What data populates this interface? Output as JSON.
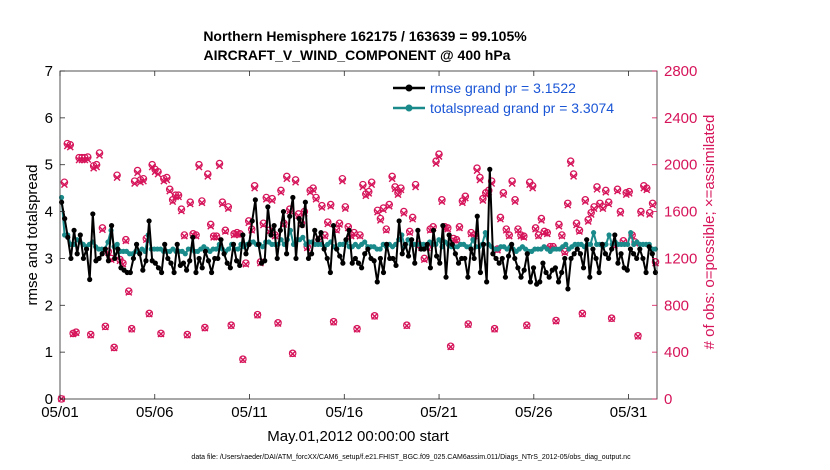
{
  "chart_data": {
    "type": "line",
    "title_line1": "Northern Hemisphere 162175 / 163639 = 99.105%",
    "title_line2": "AIRCRAFT_V_WIND_COMPONENT @ 400 hPa",
    "xlabel": "May.01,2012 00:00:00 start",
    "ylabel": "rmse and totalspread",
    "y2label": "# of obs: o=possible; ×=assimilated",
    "footnote": "data file: /Users/raeder/DAI/ATM_forcXX/CAM6_setup/f.e21.FHIST_BGC.f09_025.CAM6assim.011/Diags_NTrS_2012-05/obs_diag_output.nc",
    "xlim": [
      1,
      32.5
    ],
    "ylim": [
      0,
      7
    ],
    "y2lim": [
      0,
      2800
    ],
    "xtick_values": [
      1,
      6,
      11,
      16,
      21,
      26,
      31
    ],
    "xtick_labels": [
      "05/01",
      "05/06",
      "05/11",
      "05/16",
      "05/21",
      "05/26",
      "05/31"
    ],
    "ytick_labels": [
      "0",
      "1",
      "2",
      "3",
      "4",
      "5",
      "6",
      "7"
    ],
    "y2tick_labels": [
      "0",
      "400",
      "800",
      "1200",
      "1600",
      "2000",
      "2400",
      "2800"
    ],
    "colors": {
      "rmse": "#000000",
      "spread": "#1a8a8a",
      "obs": "#d6145a",
      "legend_text": "#1a55d6"
    },
    "series": [
      {
        "name": "rmse",
        "legend": "rmse grand pr = 3.1522",
        "values": [
          4.2,
          3.85,
          3.45,
          3.0,
          3.6,
          3.1,
          3.5,
          3.0,
          3.2,
          2.55,
          3.95,
          2.95,
          3.0,
          3.1,
          3.2,
          2.95,
          3.7,
          3.0,
          3.2,
          2.8,
          2.75,
          2.7,
          2.7,
          3.0,
          3.3,
          3.1,
          2.75,
          2.95,
          3.8,
          2.95,
          2.9,
          2.8,
          2.7,
          3.3,
          3.0,
          2.9,
          2.7,
          3.3,
          2.85,
          2.9,
          2.75,
          2.95,
          3.45,
          2.7,
          3.0,
          2.8,
          3.15,
          2.95,
          2.7,
          3.0,
          3.0,
          3.4,
          3.1,
          2.9,
          2.8,
          3.3,
          2.95,
          2.85,
          3.5,
          3.1,
          3.3,
          3.8,
          4.25,
          3.3,
          2.9,
          2.95,
          4.1,
          3.5,
          3.7,
          3.0,
          3.6,
          4.0,
          3.1,
          3.9,
          4.3,
          3.0,
          3.85,
          3.7,
          4.2,
          3.0,
          3.1,
          3.6,
          3.4,
          3.55,
          3.2,
          3.0,
          2.7,
          3.7,
          3.2,
          3.05,
          2.9,
          3.4,
          3.6,
          2.9,
          3.0,
          2.9,
          2.8,
          3.1,
          3.2,
          3.0,
          2.95,
          2.5,
          3.0,
          2.7,
          3.3,
          3.0,
          3.0,
          2.85,
          3.8,
          3.1,
          3.3,
          3.05,
          3.4,
          2.9,
          3.6,
          3.2,
          3.2,
          3.3,
          2.8,
          3.6,
          3.05,
          2.9,
          3.7,
          2.6,
          3.5,
          3.3,
          3.1,
          2.9,
          3.0,
          3.0,
          2.6,
          3.2,
          3.0,
          3.9,
          2.7,
          3.3,
          2.5,
          4.9,
          3.1,
          3.0,
          2.9,
          3.0,
          2.6,
          3.05,
          3.3,
          3.0,
          2.8,
          2.6,
          2.75,
          3.1,
          2.5,
          2.8,
          2.45,
          2.5,
          2.9,
          2.7,
          2.6,
          2.75,
          2.8,
          2.5,
          2.7,
          3.0,
          2.35,
          3.0,
          3.1,
          3.2,
          3.1,
          2.8,
          3.4,
          2.6,
          3.2,
          3.0,
          2.7,
          3.3,
          3.1,
          3.0,
          3.2,
          3.5,
          2.9,
          3.1,
          2.8,
          2.75,
          3.2,
          3.1,
          3.0,
          3.2,
          3.0,
          2.7,
          3.25,
          3.1,
          2.7
        ]
      },
      {
        "name": "totalspread",
        "legend": "totalspread grand pr = 3.3074",
        "values": [
          4.3,
          3.5,
          3.5,
          3.3,
          3.3,
          3.4,
          3.35,
          3.3,
          3.25,
          3.3,
          3.35,
          3.25,
          3.2,
          3.2,
          3.2,
          3.35,
          3.6,
          3.25,
          3.3,
          3.15,
          3.15,
          3.15,
          3.1,
          3.1,
          3.15,
          3.15,
          3.2,
          3.15,
          3.5,
          3.2,
          3.2,
          3.2,
          3.2,
          3.15,
          3.15,
          3.15,
          3.2,
          3.15,
          3.15,
          3.15,
          3.1,
          3.2,
          3.2,
          3.15,
          3.15,
          3.2,
          3.25,
          3.2,
          3.15,
          3.2,
          3.2,
          3.3,
          3.2,
          3.15,
          3.2,
          3.3,
          3.2,
          3.2,
          3.3,
          3.25,
          3.3,
          3.35,
          3.35,
          3.3,
          3.3,
          3.25,
          3.35,
          3.35,
          3.3,
          3.3,
          3.3,
          3.4,
          3.3,
          3.4,
          3.6,
          3.3,
          3.4,
          3.4,
          3.45,
          3.3,
          3.35,
          3.35,
          3.3,
          3.3,
          3.3,
          3.25,
          3.3,
          3.35,
          3.25,
          3.2,
          3.3,
          3.3,
          3.35,
          3.25,
          3.25,
          3.3,
          3.25,
          3.3,
          3.35,
          3.25,
          3.25,
          3.25,
          3.2,
          3.2,
          3.3,
          3.25,
          3.3,
          3.25,
          3.3,
          3.4,
          3.5,
          3.25,
          3.4,
          3.3,
          3.3,
          3.3,
          3.3,
          3.3,
          3.25,
          3.35,
          3.3,
          3.3,
          3.4,
          3.25,
          3.35,
          3.3,
          3.25,
          3.25,
          3.25,
          3.3,
          3.3,
          3.25,
          3.25,
          3.4,
          3.25,
          3.25,
          3.3,
          3.55,
          3.3,
          3.25,
          3.2,
          3.2,
          3.25,
          3.25,
          3.2,
          3.25,
          3.2,
          3.15,
          3.2,
          3.25,
          3.2,
          3.15,
          3.15,
          3.2,
          3.2,
          3.2,
          3.25,
          3.2,
          3.15,
          3.2,
          3.2,
          3.2,
          3.25,
          3.3,
          3.2,
          3.25,
          3.3,
          3.3,
          3.3,
          3.25,
          3.3,
          3.3,
          3.55,
          3.3,
          3.3,
          3.25,
          3.3,
          3.5,
          3.3,
          3.35,
          3.3,
          3.3,
          3.3,
          3.3,
          3.55,
          3.3,
          3.35,
          3.3,
          3.3,
          3.3,
          3.3,
          3.2,
          3.2
        ]
      }
    ],
    "obs_possible": [
      1,
      1850,
      2180,
      2170,
      560,
      570,
      2060,
      2060,
      2060,
      2065,
      550,
      1990,
      2000,
      2100,
      1460,
      620,
      1260,
      1200,
      440,
      1910,
      1190,
      1160,
      1360,
      920,
      600,
      1860,
      1950,
      1870,
      1880,
      1370,
      730,
      2000,
      1960,
      1940,
      560,
      1880,
      1890,
      1790,
      1700,
      1740,
      1740,
      1620,
      1400,
      550,
      1680,
      1410,
      1400,
      2000,
      1690,
      610,
      1920,
      1490,
      1390,
      1390,
      2010,
      1680,
      1440,
      1640,
      630,
      1410,
      1420,
      1410,
      340,
      1160,
      1520,
      1450,
      1820,
      720,
      1170,
      1500,
      1720,
      1440,
      1710,
      1400,
      650,
      1780,
      1500,
      1900,
      1620,
      390,
      1870,
      1580,
      1500,
      1600,
      1300,
      1780,
      1800,
      1720,
      1360,
      1650,
      1400,
      1510,
      1660,
      660,
      1450,
      1500,
      1880,
      1640,
      1470,
      1400,
      1420,
      600,
      1400,
      1830,
      1750,
      1770,
      1850,
      710,
      1610,
      1540,
      1630,
      1450,
      1660,
      1900,
      1810,
      1760,
      1800,
      1600,
      630,
      1430,
      1550,
      1830,
      1320,
      1300,
      1200,
      1300,
      1450,
      1470,
      2030,
      2090,
      1700,
      1470,
      1460,
      450,
      1370,
      1360,
      1470,
      1690,
      1730,
      640,
      1420,
      1400,
      1970,
      1890,
      1710,
      1760,
      1780,
      1860,
      600,
      1280,
      1550,
      1760,
      1450,
      1400,
      1860,
      1700,
      1450,
      1400,
      1390,
      630,
      1850,
      1820,
      1460,
      1400,
      1540,
      1430,
      1420,
      1300,
      1300,
      670,
      1490,
      1400,
      1260,
      1670,
      2030,
      1920,
      1500,
      1440,
      730,
      1700,
      1530,
      1590,
      1640,
      1810,
      1670,
      1640,
      1780,
      1680,
      690,
      1320,
      1790,
      1600,
      1350,
      1760,
      1770,
      1400,
      1340,
      540,
      1600,
      1820,
      1800,
      1590,
      1670,
      1170
    ],
    "obs_assimilated": [
      1,
      1830,
      2160,
      2150,
      555,
      565,
      2040,
      2040,
      2040,
      2045,
      545,
      1970,
      1980,
      2080,
      1445,
      615,
      1250,
      1190,
      435,
      1890,
      1180,
      1150,
      1350,
      910,
      595,
      1840,
      1930,
      1850,
      1860,
      1360,
      725,
      1980,
      1940,
      1920,
      555,
      1860,
      1870,
      1775,
      1685,
      1725,
      1725,
      1605,
      1390,
      545,
      1665,
      1400,
      1390,
      1980,
      1675,
      605,
      1900,
      1475,
      1380,
      1380,
      1990,
      1665,
      1430,
      1625,
      625,
      1400,
      1410,
      1400,
      335,
      1150,
      1505,
      1440,
      1800,
      715,
      1160,
      1485,
      1705,
      1430,
      1695,
      1390,
      645,
      1765,
      1490,
      1880,
      1605,
      385,
      1850,
      1565,
      1490,
      1585,
      1290,
      1765,
      1785,
      1705,
      1350,
      1635,
      1390,
      1495,
      1645,
      655,
      1440,
      1490,
      1860,
      1625,
      1460,
      1390,
      1410,
      595,
      1390,
      1810,
      1735,
      1755,
      1830,
      705,
      1595,
      1525,
      1615,
      1440,
      1645,
      1880,
      1795,
      1745,
      1785,
      1585,
      625,
      1420,
      1535,
      1810,
      1310,
      1290,
      1190,
      1290,
      1440,
      1460,
      2010,
      2070,
      1685,
      1460,
      1450,
      445,
      1360,
      1350,
      1460,
      1675,
      1715,
      635,
      1410,
      1390,
      1950,
      1870,
      1695,
      1745,
      1765,
      1840,
      595,
      1270,
      1535,
      1745,
      1440,
      1390,
      1840,
      1685,
      1440,
      1390,
      1380,
      625,
      1830,
      1800,
      1450,
      1390,
      1525,
      1420,
      1410,
      1290,
      1290,
      665,
      1475,
      1390,
      1250,
      1655,
      2010,
      1900,
      1485,
      1430,
      725,
      1685,
      1515,
      1575,
      1625,
      1790,
      1655,
      1625,
      1765,
      1665,
      685,
      1310,
      1775,
      1585,
      1340,
      1745,
      1755,
      1390,
      1330,
      535,
      1585,
      1800,
      1785,
      1575,
      1655,
      1160
    ]
  }
}
